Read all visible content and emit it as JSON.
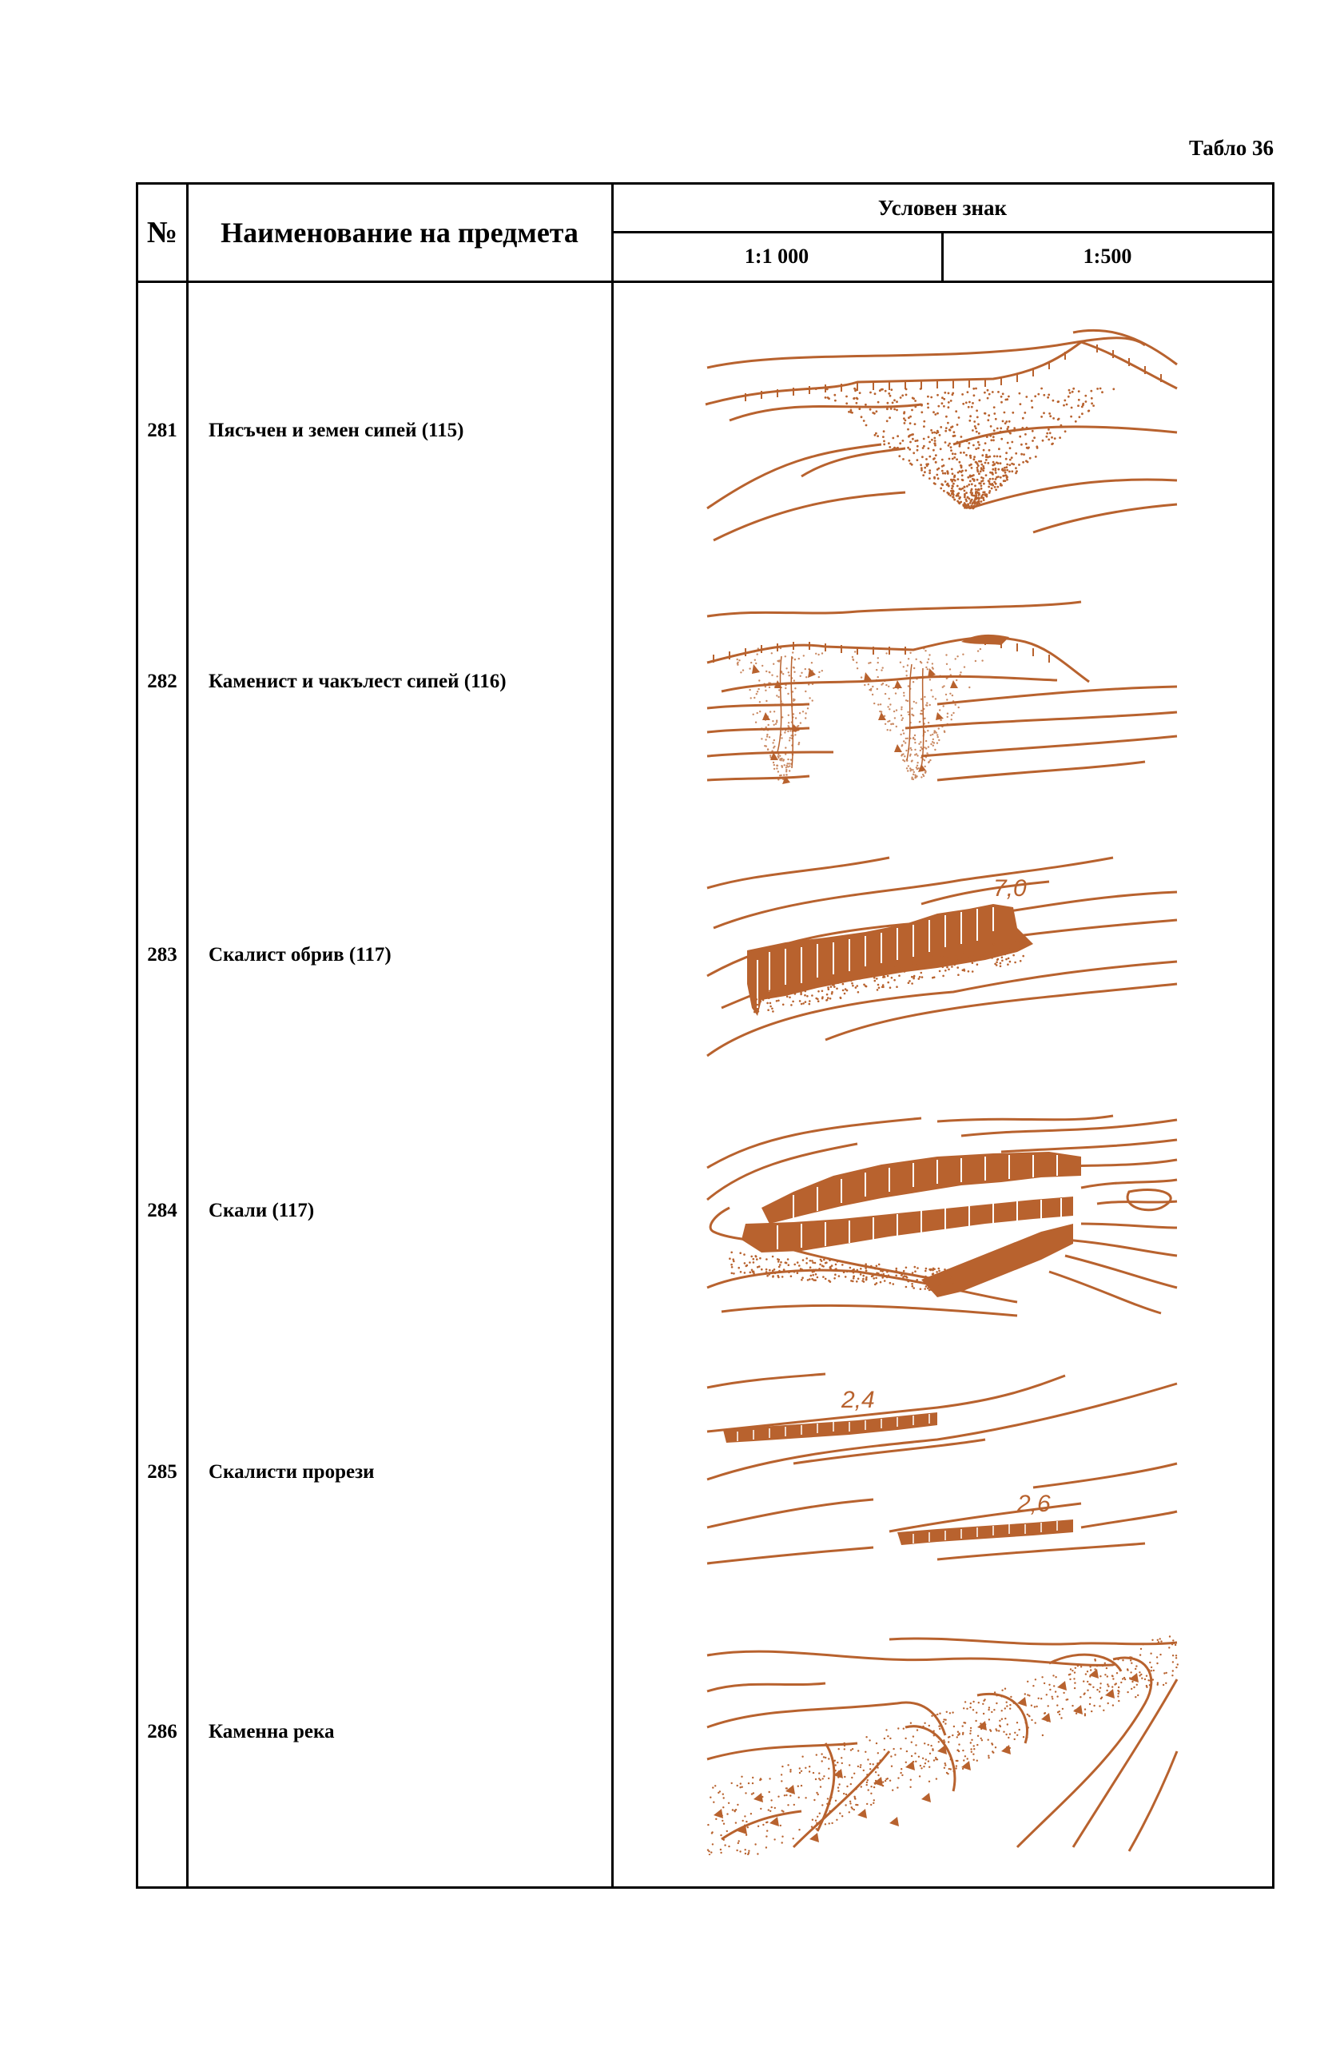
{
  "table_label": "Табло 36",
  "header": {
    "number": "№",
    "name": "Наименование на предмета",
    "sign": "Условен знак",
    "scale_1000": "1:1 000",
    "scale_500": "1:500"
  },
  "symbol_color": "#b8622e",
  "rows": [
    {
      "number": "281",
      "name": "Пясъчен и земен сипей (115)",
      "icon": "sand-earth-scree-symbol"
    },
    {
      "number": "282",
      "name": "Каменист и чакълест сипей (116)",
      "icon": "stony-gravel-scree-symbol"
    },
    {
      "number": "283",
      "name": "Скалист обрив (117)",
      "icon": "rocky-cliff-symbol",
      "labels": [
        "7,0"
      ]
    },
    {
      "number": "284",
      "name": "Скали (117)",
      "icon": "rocks-symbol"
    },
    {
      "number": "285",
      "name": "Скалисти прорези",
      "icon": "rocky-cuts-symbol",
      "labels": [
        "2,4",
        "2,6"
      ]
    },
    {
      "number": "286",
      "name": "Каменна река",
      "icon": "stone-river-symbol"
    }
  ]
}
